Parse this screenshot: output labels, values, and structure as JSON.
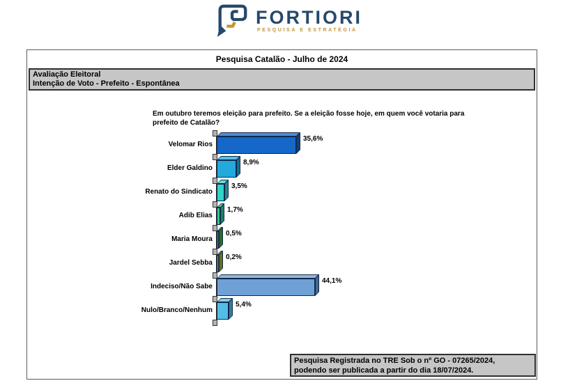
{
  "logo": {
    "brand": "FORTIORI",
    "tagline": "PESQUISA E ESTRATÉGIA",
    "brand_color": "#25496B",
    "tagline_color": "#C49435"
  },
  "report": {
    "title": "Pesquisa Catalão - Julho de 2024",
    "section_line1": "Avaliação Eleitoral",
    "section_line2": "Intenção de Voto - Prefeito - Espontânea",
    "question": "Em outubro teremos eleição para prefeito. Se a eleição fosse hoje, em quem você votaria para prefeito de Catalão?",
    "footnote_line1": "Pesquisa Registrada no TRE Sob o nº GO - 07265/2024,",
    "footnote_line2": "podendo ser publicada a partir do dia 18/07/2024."
  },
  "chart_data": {
    "type": "bar",
    "orientation": "horizontal",
    "style": "3d",
    "title": "",
    "xlabel": "",
    "ylabel": "",
    "xlim": [
      0,
      50
    ],
    "grid": false,
    "legend": false,
    "categories": [
      "Velomar Rios",
      "Elder Galdino",
      "Renato do Sindicato",
      "Adib Elias",
      "Maria Moura",
      "Jardel Sebba",
      "Indeciso/Não Sabe",
      "Nulo/Branco/Nenhum"
    ],
    "values": [
      35.6,
      8.9,
      3.5,
      1.7,
      0.5,
      0.2,
      44.1,
      5.4
    ],
    "value_labels": [
      "35,6%",
      "8,9%",
      "3,5%",
      "1,7%",
      "0,5%",
      "0,2%",
      "44,1%",
      "5,4%"
    ],
    "bar_colors": [
      "#1567C8",
      "#22A9DE",
      "#31D3CA",
      "#2FC795",
      "#4BA03D",
      "#A4A836",
      "#6FA0D6",
      "#55BCE6"
    ]
  }
}
